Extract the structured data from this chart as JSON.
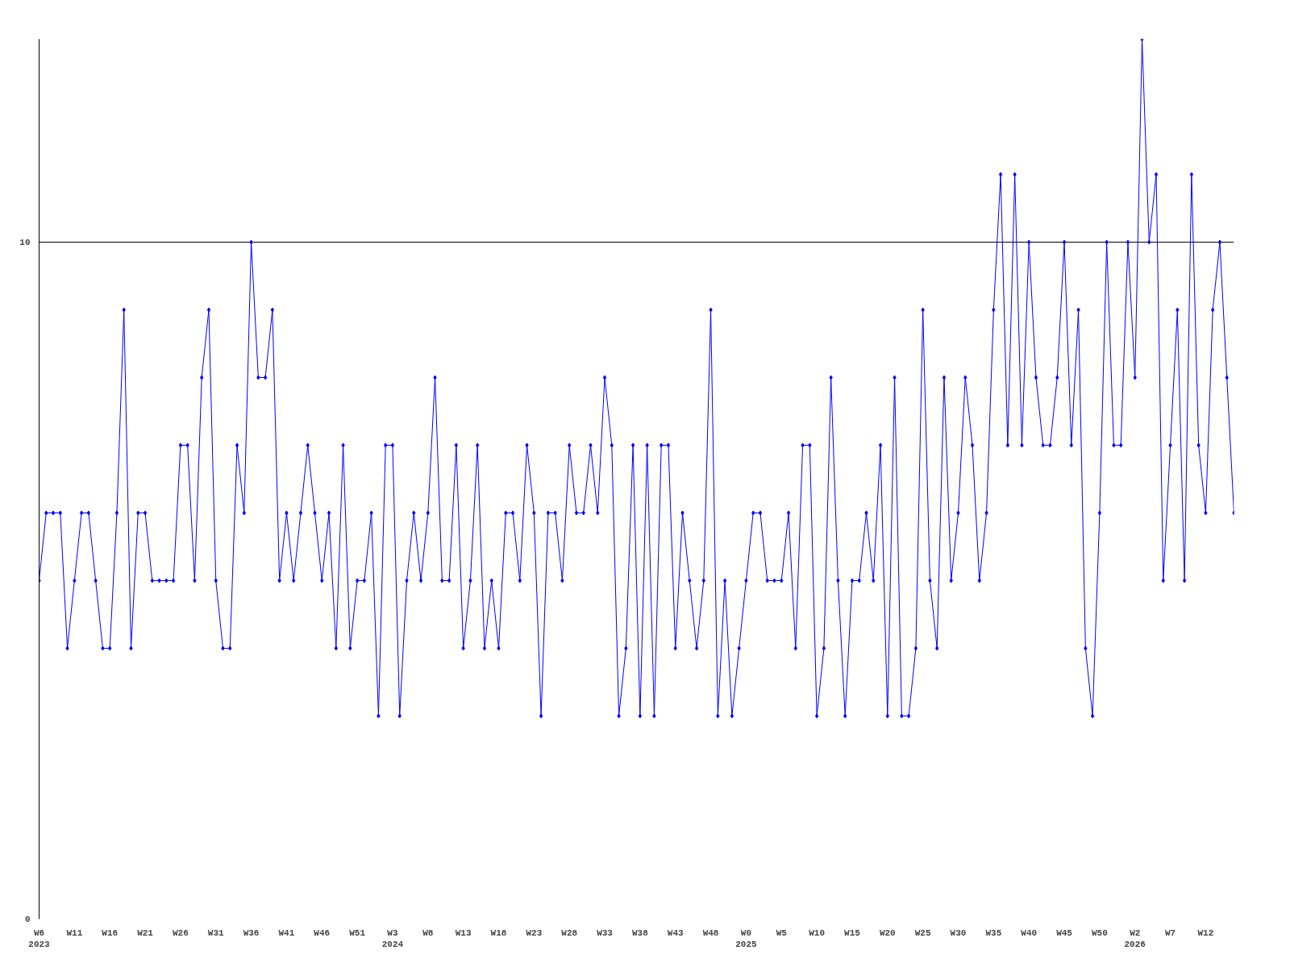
{
  "chart_data": {
    "type": "line",
    "ylim": [
      0,
      13
    ],
    "yticks": [
      0,
      10
    ],
    "grid": "y",
    "marker": "diamond",
    "line_style": "solid",
    "categories": [
      "W6\n2023",
      null,
      null,
      null,
      null,
      "W11",
      null,
      null,
      null,
      null,
      "W16",
      null,
      null,
      null,
      null,
      "W21",
      null,
      null,
      null,
      null,
      "W26",
      null,
      null,
      null,
      null,
      "W31",
      null,
      null,
      null,
      null,
      "W36",
      null,
      null,
      null,
      null,
      "W41",
      null,
      null,
      null,
      null,
      "W46",
      null,
      null,
      null,
      null,
      "W51",
      null,
      null,
      null,
      null,
      "W3\n2024",
      null,
      null,
      null,
      null,
      "W8",
      null,
      null,
      null,
      null,
      "W13",
      null,
      null,
      null,
      null,
      "W18",
      null,
      null,
      null,
      null,
      "W23",
      null,
      null,
      null,
      null,
      "W28",
      null,
      null,
      null,
      null,
      "W33",
      null,
      null,
      null,
      null,
      "W38",
      null,
      null,
      null,
      null,
      "W43",
      null,
      null,
      null,
      null,
      "W48",
      null,
      null,
      null,
      null,
      "W0\n2025",
      null,
      null,
      null,
      null,
      "W5",
      null,
      null,
      null,
      null,
      "W10",
      null,
      null,
      null,
      null,
      "W15",
      null,
      null,
      null,
      null,
      "W20",
      null,
      null,
      null,
      null,
      "W25",
      null,
      null,
      null,
      null,
      "W30",
      null,
      null,
      null,
      null,
      "W35",
      null,
      null,
      null,
      null,
      "W40",
      null,
      null,
      null,
      null,
      "W45",
      null,
      null,
      null,
      null,
      "W50",
      null,
      null,
      null,
      null,
      "W2\n2026",
      null,
      null,
      null,
      null,
      "W7",
      null,
      null,
      null,
      null,
      "W12",
      null,
      null,
      null,
      null
    ],
    "series": [
      {
        "color": "#0000ff",
        "values": [
          5,
          6,
          6,
          6,
          4,
          5,
          6,
          6,
          5,
          4,
          4,
          6,
          9,
          4,
          6,
          6,
          5,
          5,
          5,
          5,
          7,
          7,
          5,
          8,
          9,
          5,
          4,
          4,
          7,
          6,
          10,
          8,
          8,
          9,
          5,
          6,
          5,
          6,
          7,
          6,
          5,
          6,
          4,
          7,
          4,
          5,
          5,
          6,
          3,
          7,
          7,
          3,
          5,
          6,
          5,
          6,
          8,
          5,
          5,
          7,
          4,
          5,
          7,
          4,
          5,
          4,
          6,
          6,
          5,
          7,
          6,
          3,
          6,
          6,
          5,
          7,
          6,
          6,
          7,
          6,
          8,
          7,
          3,
          4,
          7,
          3,
          7,
          3,
          7,
          7,
          4,
          6,
          5,
          4,
          5,
          9,
          3,
          5,
          3,
          4,
          5,
          6,
          6,
          5,
          5,
          5,
          6,
          4,
          7,
          7,
          3,
          4,
          8,
          5,
          3,
          5,
          5,
          6,
          5,
          7,
          3,
          8,
          3,
          3,
          4,
          9,
          5,
          4,
          8,
          5,
          6,
          8,
          7,
          5,
          6,
          9,
          11,
          7,
          11,
          7,
          10,
          8,
          7,
          7,
          8,
          10,
          7,
          9,
          4,
          3,
          6,
          10,
          7,
          7,
          10,
          8,
          13,
          10,
          11,
          5,
          7,
          9,
          5,
          11,
          7,
          6,
          9,
          10,
          8,
          6
        ]
      }
    ]
  }
}
